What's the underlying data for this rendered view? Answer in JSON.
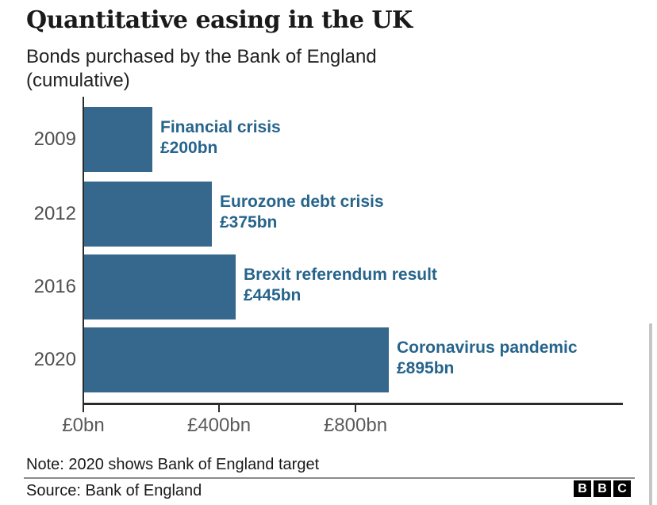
{
  "header": {
    "title": "Quantitative easing in the UK",
    "subtitle_line1": "Bonds purchased by the Bank of England",
    "subtitle_line2": "(cumulative)"
  },
  "chart_data": {
    "type": "bar",
    "orientation": "horizontal",
    "title": "Quantitative easing in the UK",
    "subtitle": "Bonds purchased by the Bank of England (cumulative)",
    "categories": [
      "2009",
      "2012",
      "2016",
      "2020"
    ],
    "values": [
      200,
      375,
      445,
      895
    ],
    "value_labels": [
      "£200bn",
      "£375bn",
      "£445bn",
      "£895bn"
    ],
    "annotations": [
      "Financial crisis",
      "Eurozone debt crisis",
      "Brexit referendum result",
      "Coronavirus pandemic"
    ],
    "x_ticks": [
      "£0bn",
      "£400bn",
      "£800bn"
    ],
    "x_tick_values": [
      0,
      400,
      800
    ],
    "xlim": [
      0,
      1590
    ],
    "grid": false,
    "legend": false,
    "units": "£bn"
  },
  "bars": [
    {
      "year": "2009",
      "event": "Financial crisis",
      "amount": "£200bn",
      "value": 200
    },
    {
      "year": "2012",
      "event": "Eurozone debt crisis",
      "amount": "£375bn",
      "value": 375
    },
    {
      "year": "2016",
      "event": "Brexit referendum result",
      "amount": "£445bn",
      "value": 445
    },
    {
      "year": "2020",
      "event": "Coronavirus pandemic",
      "amount": "£895bn",
      "value": 895
    }
  ],
  "footer": {
    "note": "Note: 2020 shows Bank of England target",
    "source": "Source: Bank of England",
    "logo_letters": [
      "B",
      "B",
      "C"
    ]
  },
  "colors": {
    "bar_fill": "#35688c",
    "annotation_text": "#26648c",
    "axis": "#2b2b2b",
    "year_label": "#4f4f4f",
    "tick_label": "#5a5a5a",
    "heading_text": "#1a1a1a",
    "divider": "#8a8a8a",
    "logo_background": "#000000",
    "logo_text": "#ffffff",
    "scrollbar": "#c6c6c6"
  }
}
